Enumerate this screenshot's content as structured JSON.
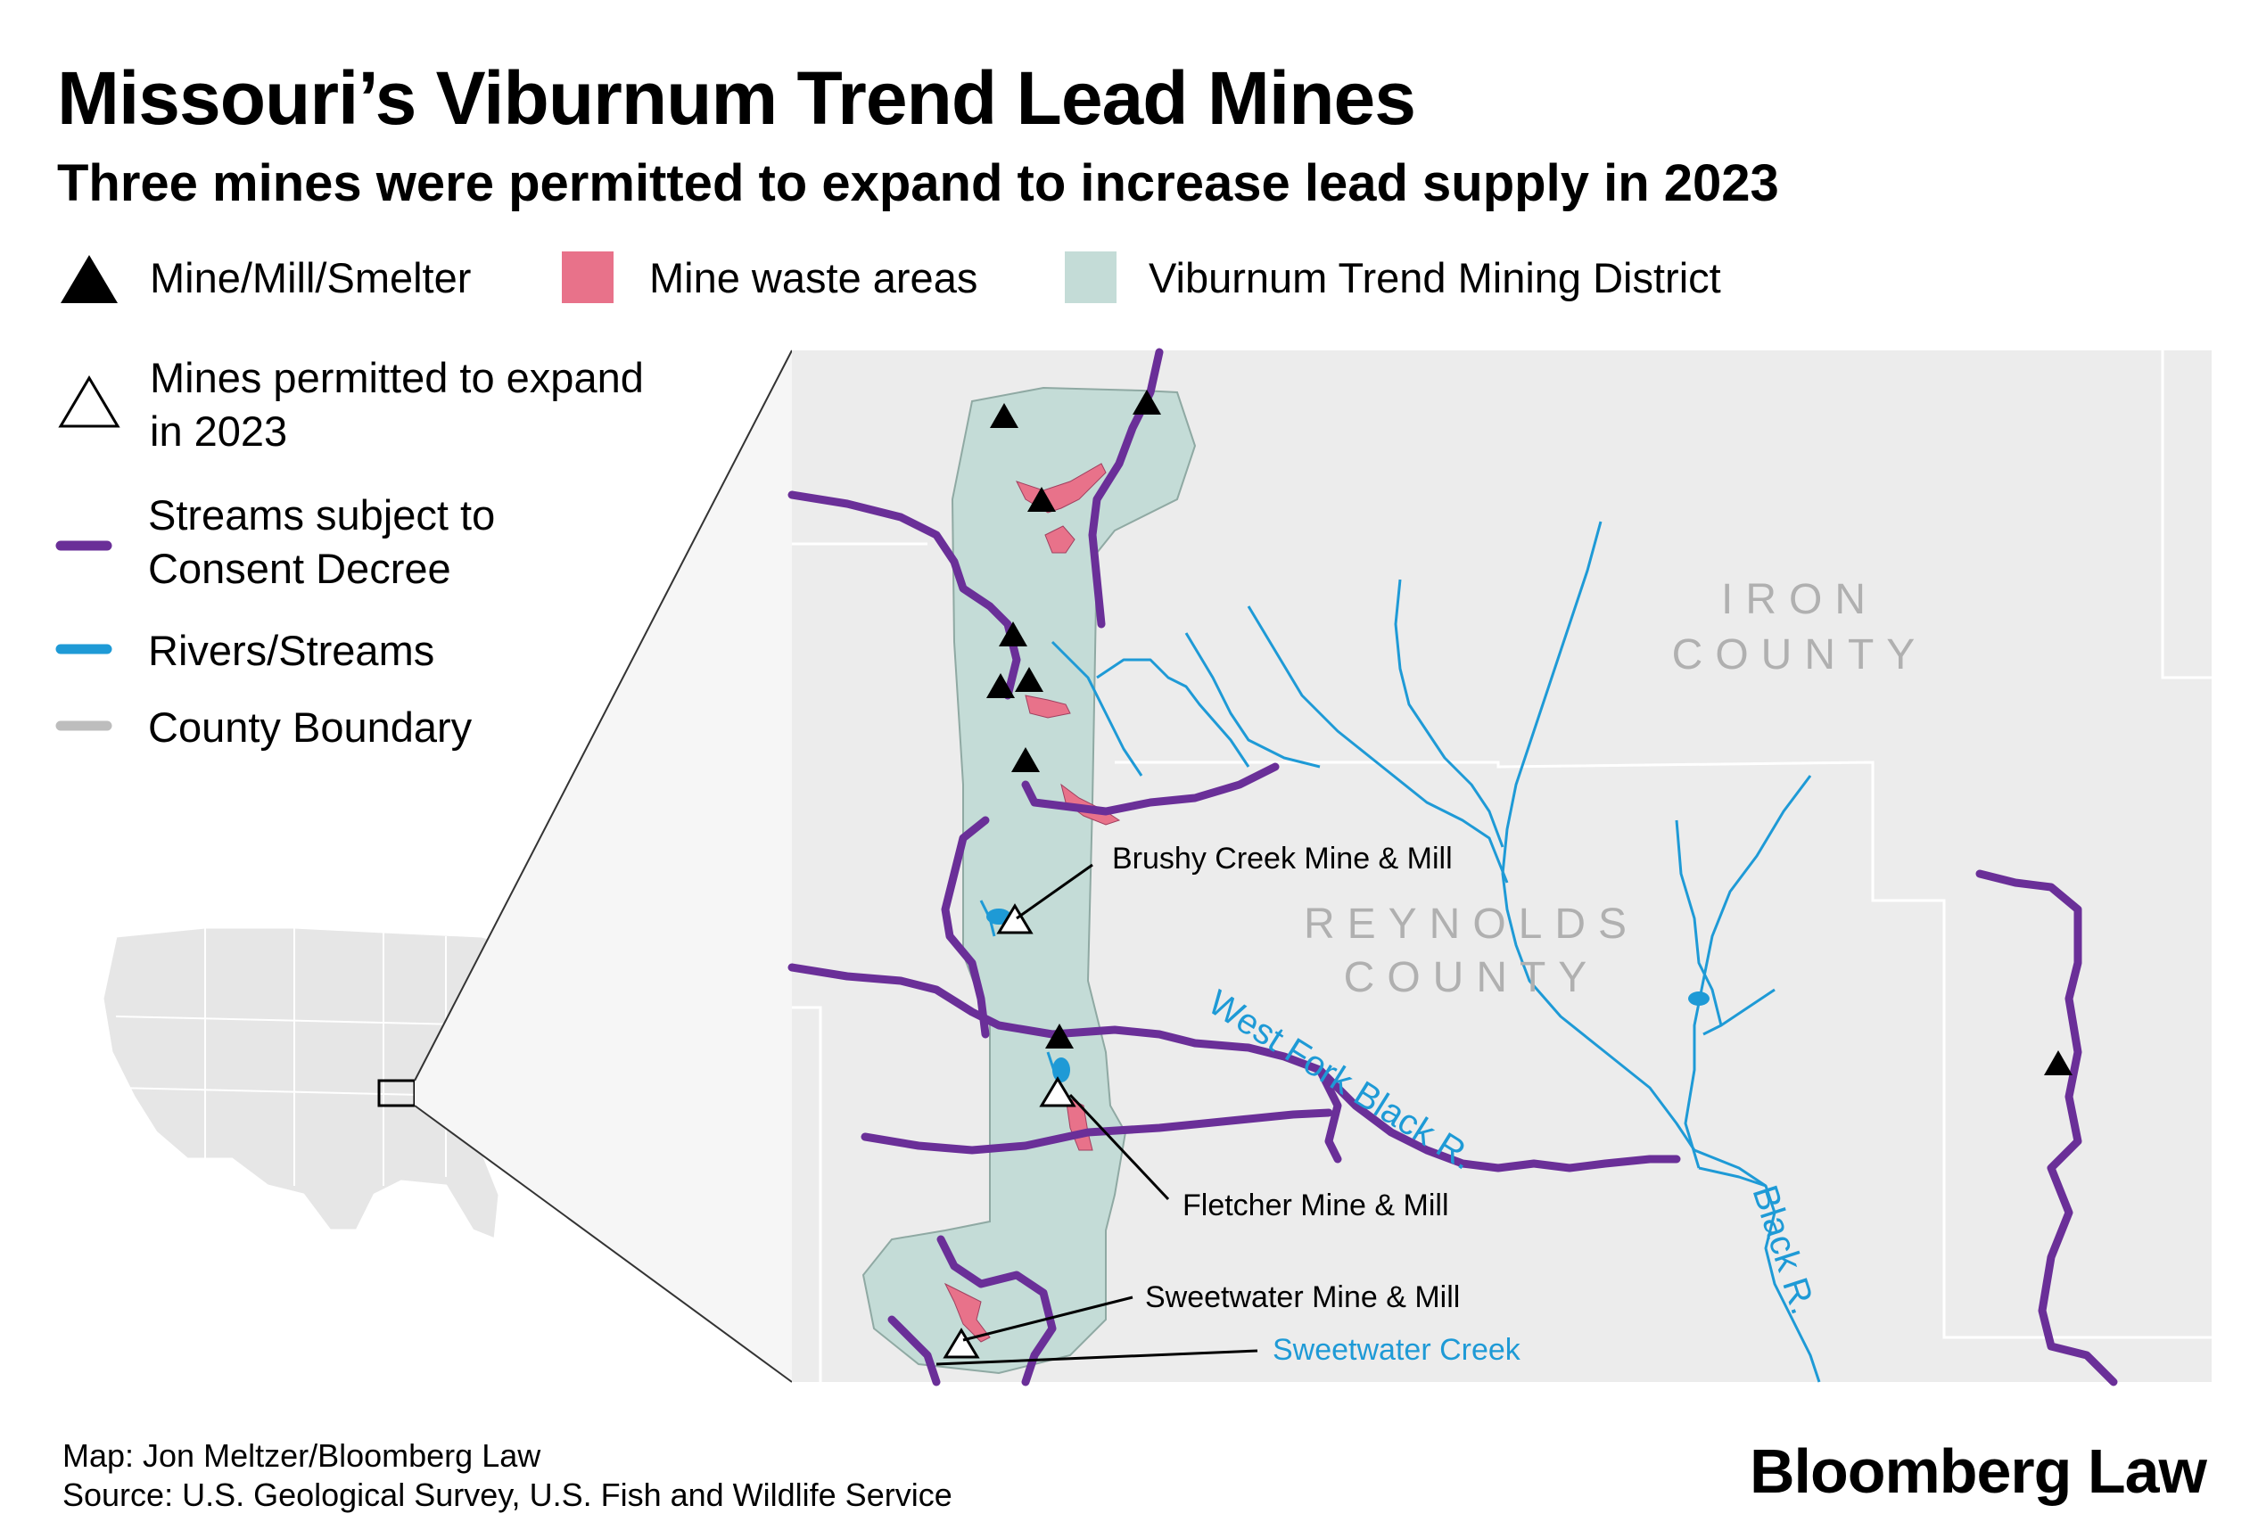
{
  "title": "Missouri’s Viburnum Trend Lead Mines",
  "subtitle": "Three mines were permitted to expand to increase lead supply in 2023",
  "legend": {
    "mine": "Mine/Mill/Smelter",
    "waste": "Mine waste areas",
    "district": "Viburnum Trend Mining District",
    "expand_line1": "Mines permitted to expand",
    "expand_line2": "in 2023",
    "streams_decree_line1": "Streams subject to",
    "streams_decree_line2": "Consent Decree",
    "rivers": "Rivers/Streams",
    "county": "County Boundary"
  },
  "map": {
    "county_iron_1": "IRON",
    "county_iron_2": "COUNTY",
    "county_reynolds_1": "REYNOLDS",
    "county_reynolds_2": "COUNTY",
    "label_brushy": "Brushy Creek Mine & Mill",
    "label_fletcher": "Fletcher Mine & Mill",
    "label_sweetwater": "Sweetwater Mine & Mill",
    "label_sweetwater_creek": "Sweetwater Creek",
    "label_west_fork": "West Fork Black R.",
    "label_black_r": "Black R."
  },
  "colors": {
    "mine": "#000000",
    "waste": "#e8728a",
    "district": "#c4dcd7",
    "consent_stream": "#6a2f98",
    "river": "#1e9ad6",
    "county": "#bdbdbd",
    "map_bg": "#ececec"
  },
  "footer": {
    "credit": "Map: Jon Meltzer/Bloomberg Law",
    "source": "Source: U.S. Geological Survey, U.S. Fish and Wildlife Service",
    "brand": "Bloomberg Law"
  }
}
